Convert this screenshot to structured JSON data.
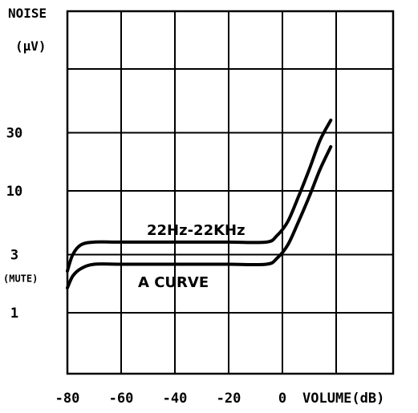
{
  "chart_data": {
    "type": "line",
    "ylabel_line1": "NOISE",
    "ylabel_line2": "(μV)",
    "xlabel": "VOLUME(dB)",
    "x_scale": "linear",
    "y_scale": "log",
    "xlim": [
      -80,
      20
    ],
    "ylim": [
      0.3,
      100
    ],
    "grid": true,
    "x_ticks": [
      {
        "value": -80,
        "label": "-80"
      },
      {
        "value": -60,
        "label": "-60"
      },
      {
        "value": -40,
        "label": "-40"
      },
      {
        "value": -20,
        "label": "-20"
      },
      {
        "value": 0,
        "label": "0"
      }
    ],
    "y_ticks": [
      {
        "value": 1,
        "label": "1"
      },
      {
        "value": 3,
        "label": "3"
      },
      {
        "value": 10,
        "label": "10"
      },
      {
        "value": 30,
        "label": "30"
      }
    ],
    "y_extra_label": {
      "value": 1.9,
      "label": "(MUTE)"
    },
    "series": [
      {
        "name": "22Hz-22KHz",
        "x": [
          -80,
          -78,
          -75,
          -70,
          -60,
          -40,
          -20,
          -6,
          -2,
          2,
          6,
          10,
          14,
          18
        ],
        "y": [
          2.2,
          3.0,
          3.6,
          3.8,
          3.8,
          3.8,
          3.8,
          3.8,
          4.3,
          5.6,
          9.0,
          15,
          26,
          38
        ]
      },
      {
        "name": "A CURVE",
        "x": [
          -80,
          -78,
          -75,
          -70,
          -60,
          -40,
          -20,
          -6,
          -2,
          2,
          6,
          10,
          14,
          18
        ],
        "y": [
          1.6,
          2.0,
          2.3,
          2.5,
          2.5,
          2.5,
          2.5,
          2.5,
          2.8,
          3.6,
          5.6,
          9.0,
          15,
          23
        ]
      }
    ]
  }
}
